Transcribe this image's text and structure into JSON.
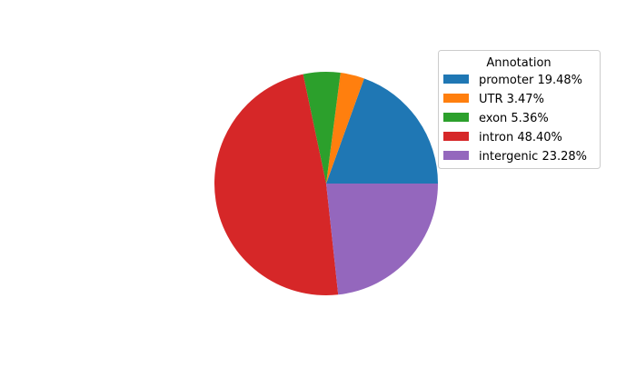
{
  "chart_data": {
    "type": "pie",
    "title": "",
    "start_angle_deg": 0,
    "direction": "counterclockwise",
    "categories": [
      "promoter",
      "UTR",
      "exon",
      "intron",
      "intergenic"
    ],
    "values": [
      19.48,
      3.47,
      5.36,
      48.4,
      23.28
    ],
    "colors": [
      "#1f77b4",
      "#ff7f0e",
      "#2ca02c",
      "#d62728",
      "#9467bd"
    ],
    "legend": {
      "title": "Annotation",
      "placement": "upper-right",
      "entries": [
        "promoter 19.48%",
        "UTR 3.47%",
        "exon 5.36%",
        "intron 48.40%",
        "intergenic 23.28%"
      ]
    }
  }
}
